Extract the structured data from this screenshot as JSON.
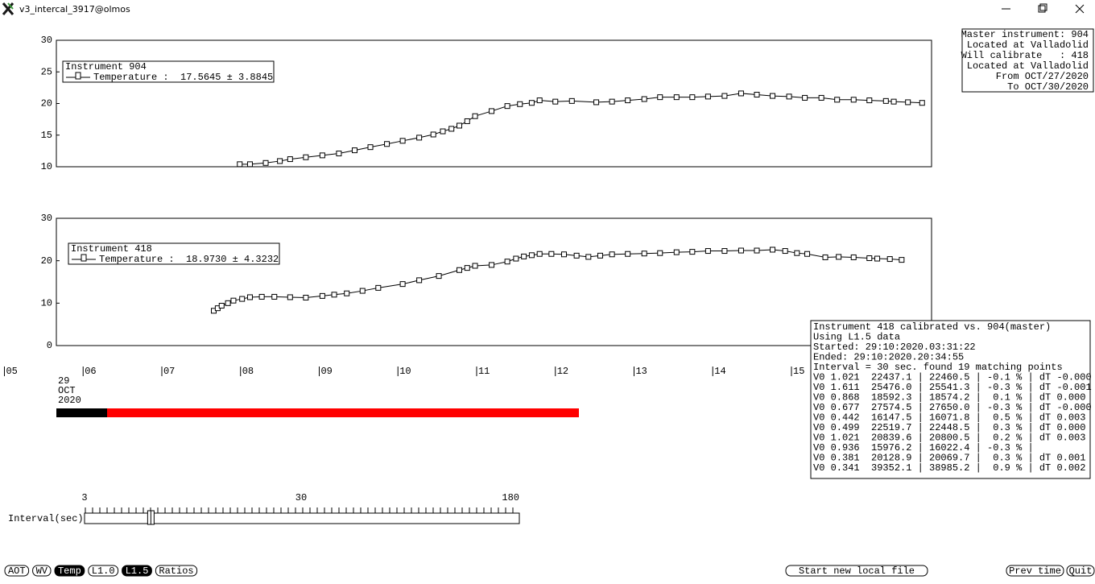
{
  "window_title": "v3_intercal_3917@olmos",
  "chart_data": [
    {
      "type": "line",
      "legend_title": "Instrument 904",
      "xlim": [
        5.66,
        16.78
      ],
      "ylim": [
        10,
        30
      ],
      "yticks": [
        10,
        15,
        20,
        25,
        30
      ],
      "series": [
        {
          "name": "Temperature :  17.5645 ± 3.8845",
          "color": "#000000",
          "x": [
            7.99,
            8.12,
            8.32,
            8.5,
            8.63,
            8.83,
            9.04,
            9.25,
            9.45,
            9.65,
            9.86,
            10.06,
            10.27,
            10.45,
            10.57,
            10.68,
            10.78,
            10.88,
            10.98,
            11.19,
            11.39,
            11.55,
            11.7,
            11.8,
            12.0,
            12.21,
            12.52,
            12.72,
            12.92,
            13.13,
            13.33,
            13.54,
            13.74,
            13.94,
            14.15,
            14.36,
            14.56,
            14.76,
            14.97,
            15.17,
            15.38,
            15.58,
            15.79,
            15.99,
            16.2,
            16.3,
            16.48,
            16.66
          ],
          "values": [
            10.4,
            10.4,
            10.6,
            10.9,
            11.2,
            11.5,
            11.8,
            12.1,
            12.6,
            13.1,
            13.6,
            14.1,
            14.6,
            15.1,
            15.6,
            16.0,
            16.5,
            17.2,
            18.0,
            18.8,
            19.6,
            19.9,
            20.1,
            20.5,
            20.3,
            20.4,
            20.2,
            20.3,
            20.5,
            20.7,
            21.0,
            21.0,
            21.0,
            21.1,
            21.2,
            21.6,
            21.4,
            21.2,
            21.1,
            20.9,
            20.9,
            20.6,
            20.6,
            20.5,
            20.4,
            20.3,
            20.2,
            20.1
          ]
        }
      ]
    },
    {
      "type": "line",
      "legend_title": "Instrument 418",
      "xlim": [
        5.66,
        16.78
      ],
      "ylim": [
        0,
        30
      ],
      "yticks": [
        0,
        10,
        20,
        30
      ],
      "xticks": [
        {
          "value": 5,
          "label": "05"
        },
        {
          "value": 6,
          "label": "06"
        },
        {
          "value": 7,
          "label": "07"
        },
        {
          "value": 8,
          "label": "08"
        },
        {
          "value": 9,
          "label": "09"
        },
        {
          "value": 10,
          "label": "10"
        },
        {
          "value": 11,
          "label": "11"
        },
        {
          "value": 12,
          "label": "12"
        },
        {
          "value": 13,
          "label": "13"
        },
        {
          "value": 14,
          "label": "14"
        },
        {
          "value": 15,
          "label": "15"
        }
      ],
      "series": [
        {
          "name": "Temperature :  18.9730 ± 4.3232",
          "color": "#000000",
          "x": [
            7.66,
            7.71,
            7.76,
            7.84,
            7.91,
            8.02,
            8.12,
            8.27,
            8.43,
            8.63,
            8.83,
            9.04,
            9.19,
            9.35,
            9.55,
            9.75,
            10.06,
            10.27,
            10.52,
            10.78,
            10.88,
            10.98,
            11.19,
            11.39,
            11.5,
            11.6,
            11.7,
            11.8,
            11.95,
            12.11,
            12.27,
            12.42,
            12.57,
            12.72,
            12.92,
            13.13,
            13.33,
            13.54,
            13.74,
            13.94,
            14.15,
            14.36,
            14.56,
            14.76,
            14.92,
            15.07,
            15.2,
            15.43,
            15.6,
            15.79,
            15.99,
            16.09,
            16.25,
            16.4
          ],
          "values": [
            8.2,
            8.8,
            9.4,
            10.0,
            10.6,
            11.0,
            11.4,
            11.5,
            11.5,
            11.4,
            11.3,
            11.7,
            12.0,
            12.3,
            12.9,
            13.6,
            14.5,
            15.4,
            16.4,
            17.8,
            18.3,
            18.8,
            19.0,
            19.8,
            20.5,
            21.0,
            21.3,
            21.6,
            21.6,
            21.5,
            21.2,
            20.9,
            21.2,
            21.5,
            21.6,
            21.7,
            21.8,
            22.0,
            22.1,
            22.3,
            22.3,
            22.4,
            22.4,
            22.6,
            22.3,
            21.8,
            21.6,
            20.8,
            20.9,
            20.8,
            20.6,
            20.5,
            20.4,
            20.2
          ]
        }
      ]
    }
  ],
  "date_label": [
    "29",
    "OCT",
    "2020"
  ],
  "info_box": [
    "Master instrument: 904",
    "Located at Valladolid",
    "Will calibrate   : 418",
    "Located at Valladolid",
    "From OCT/27/2020",
    "To OCT/30/2020"
  ],
  "results_box": [
    "Instrument 418 calibrated vs. 904(master)",
    "Using L1.5 data",
    "Started: 29:10:2020.03:31:22",
    "Ended: 29:10:2020.20:34:55",
    "Interval = 30 sec. found 19 matching points",
    "V0 1.021  22437.1 | 22460.5 | -0.1 % | dT -0.000",
    "V0 1.611  25476.0 | 25541.3 | -0.3 % | dT -0.001",
    "V0 0.868  18592.3 | 18574.2 |  0.1 % | dT 0.000",
    "V0 0.677  27574.5 | 27650.0 | -0.3 % | dT -0.000",
    "V0 0.442  16147.5 | 16071.8 |  0.5 % | dT 0.003",
    "V0 0.499  22519.7 | 22448.5 |  0.3 % | dT 0.000",
    "V0 1.021  20839.6 | 20800.5 |  0.2 % | dT 0.003",
    "V0 0.936  15976.2 | 16022.4 | -0.3 % |",
    "V0 0.381  20128.9 | 20069.7 |  0.3 % | dT 0.001",
    "V0 0.341  39352.1 | 38985.2 |  0.9 % | dT 0.002"
  ],
  "slider": {
    "label": "Interval(sec)",
    "min": 3,
    "max": 180,
    "value": 30,
    "ticks": [
      3,
      30,
      180
    ]
  },
  "buttons": [
    {
      "label": "AOT",
      "selected": false
    },
    {
      "label": "WV",
      "selected": false
    },
    {
      "label": "Temp",
      "selected": true
    },
    {
      "label": "L1.0",
      "selected": false
    },
    {
      "label": "L1.5",
      "selected": true
    },
    {
      "label": "Ratios",
      "selected": false
    }
  ],
  "action_buttons": [
    "Start new local file",
    "Prev time",
    "Quit"
  ]
}
